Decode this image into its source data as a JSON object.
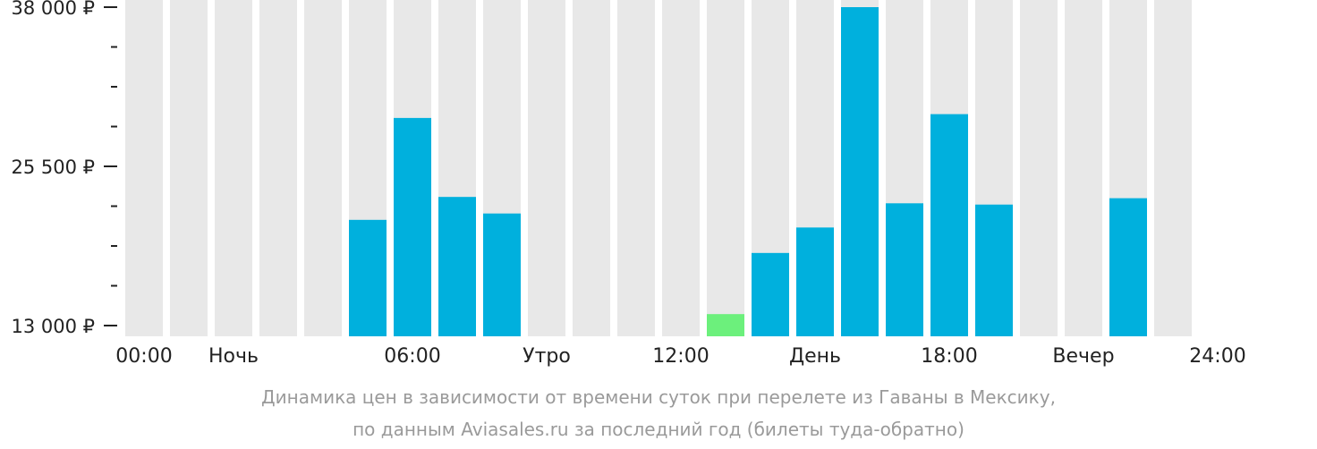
{
  "chart_data": {
    "type": "bar",
    "hours": [
      "00:00",
      "01:00",
      "02:00",
      "03:00",
      "04:00",
      "05:00",
      "06:00",
      "07:00",
      "08:00",
      "09:00",
      "10:00",
      "11:00",
      "12:00",
      "13:00",
      "14:00",
      "15:00",
      "16:00",
      "17:00",
      "18:00",
      "19:00",
      "20:00",
      "21:00",
      "22:00",
      "23:00"
    ],
    "values": [
      null,
      null,
      null,
      null,
      null,
      21300,
      29300,
      23100,
      21800,
      null,
      null,
      null,
      null,
      13900,
      18700,
      20700,
      38000,
      22600,
      29600,
      22500,
      null,
      null,
      23000,
      null
    ],
    "cheapest_index": 13,
    "ylim": [
      13000,
      38000
    ],
    "yticks": [
      {
        "value": 13000,
        "label": "13 000 ₽"
      },
      {
        "value": 25500,
        "label": "25 500 ₽"
      },
      {
        "value": 38000,
        "label": "38 000 ₽"
      }
    ],
    "minor_ticks": 3,
    "xlabels": [
      {
        "slot": 0,
        "label": "00:00"
      },
      {
        "slot": 2,
        "label": "Ночь"
      },
      {
        "slot": 6,
        "label": "06:00"
      },
      {
        "slot": 9,
        "label": "Утро"
      },
      {
        "slot": 12,
        "label": "12:00"
      },
      {
        "slot": 15,
        "label": "День"
      },
      {
        "slot": 18,
        "label": "18:00"
      },
      {
        "slot": 21,
        "label": "Вечер"
      },
      {
        "slot": 24,
        "label": "24:00"
      }
    ],
    "colors": {
      "bar": "#00b0dd",
      "cheapest": "#6cf07c",
      "empty": "#e8e8e8",
      "axis": "#222222"
    }
  },
  "caption": {
    "line1": "Динамика цен в зависимости от времени суток при перелете из Гаваны в Мексику,",
    "line2": "по данным Aviasales.ru за последний год (билеты туда-обратно)"
  }
}
